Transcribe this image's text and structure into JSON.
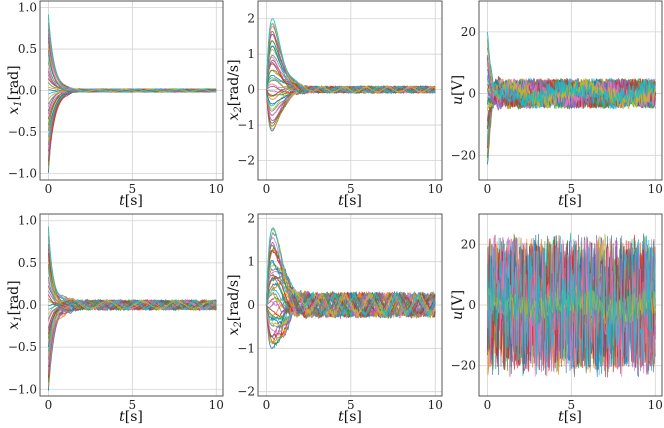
{
  "chart_data": [
    {
      "type": "line",
      "panel": "top-left",
      "xlabel": {
        "var": "t",
        "unit": "[s]"
      },
      "ylabel": {
        "var": "x",
        "sub": "1",
        "unit": "[rad]"
      },
      "xlim": [
        -0.5,
        10.4
      ],
      "ylim": [
        -1.08,
        1.08
      ],
      "xticks": [
        0,
        5,
        10
      ],
      "yticks": [
        -1.0,
        -0.5,
        0.0,
        0.5,
        1.0
      ],
      "ytick_labels": [
        "−1.0",
        "−0.5",
        "0.0",
        "0.5",
        "1.0"
      ],
      "grid": true,
      "series_count": 40,
      "initial_range": [
        -1.0,
        0.93
      ],
      "settling_time": 2.0,
      "steady_amplitude": 0.02,
      "peak_overshoot": 0.0
    },
    {
      "type": "line",
      "panel": "top-middle",
      "xlabel": {
        "var": "t",
        "unit": "[s]"
      },
      "ylabel": {
        "var": "x",
        "sub": "2",
        "unit": "[rad/s]"
      },
      "xlim": [
        -0.5,
        10.4
      ],
      "ylim": [
        -2.55,
        2.5
      ],
      "xticks": [
        0,
        5,
        10
      ],
      "yticks": [
        -2,
        -1,
        0,
        1,
        2
      ],
      "ytick_labels": [
        "−2",
        "−1",
        "0",
        "1",
        "2"
      ],
      "grid": true,
      "series_count": 40,
      "peak_range": [
        -1.2,
        2.0
      ],
      "peak_time": 0.35,
      "steady_amplitude": 0.1
    },
    {
      "type": "line",
      "panel": "top-right",
      "xlabel": {
        "var": "t",
        "unit": "[s]"
      },
      "ylabel": {
        "var": "u",
        "unit": "[V]"
      },
      "xlim": [
        -0.5,
        10.4
      ],
      "ylim": [
        -28,
        30
      ],
      "xticks": [
        0,
        5,
        10
      ],
      "yticks": [
        -20,
        0,
        20
      ],
      "ytick_labels": [
        "−20",
        "0",
        "20"
      ],
      "grid": true,
      "series_count": 40,
      "initial_range": [
        -22,
        18
      ],
      "noise_amplitude": 3,
      "oscillation_amplitude": 2
    },
    {
      "type": "line",
      "panel": "bottom-left",
      "xlabel": {
        "var": "t",
        "unit": "[s]"
      },
      "ylabel": {
        "var": "x",
        "sub": "1",
        "unit": "[rad]"
      },
      "xlim": [
        -0.5,
        10.4
      ],
      "ylim": [
        -1.08,
        1.08
      ],
      "xticks": [
        0,
        5,
        10
      ],
      "yticks": [
        -1.0,
        -0.5,
        0.0,
        0.5,
        1.0
      ],
      "ytick_labels": [
        "−1.0",
        "−0.5",
        "0.0",
        "0.5",
        "1.0"
      ],
      "grid": true,
      "series_count": 40,
      "initial_range": [
        -1.0,
        0.93
      ],
      "settling_time": 2.0,
      "steady_amplitude": 0.06,
      "peak_overshoot": 0.12
    },
    {
      "type": "line",
      "panel": "bottom-middle",
      "xlabel": {
        "var": "t",
        "unit": "[s]"
      },
      "ylabel": {
        "var": "x",
        "sub": "2",
        "unit": "[rad/s]"
      },
      "xlim": [
        -0.5,
        10.4
      ],
      "ylim": [
        -2.1,
        2.1
      ],
      "xticks": [
        0,
        5,
        10
      ],
      "yticks": [
        -2,
        -1,
        0,
        1,
        2
      ],
      "ytick_labels": [
        "−2",
        "−1",
        "0",
        "1",
        "2"
      ],
      "grid": true,
      "series_count": 40,
      "peak_range": [
        -1.2,
        2.0
      ],
      "peak_time": 0.35,
      "steady_amplitude": 0.3
    },
    {
      "type": "line",
      "panel": "bottom-right",
      "xlabel": {
        "var": "t",
        "unit": "[s]"
      },
      "ylabel": {
        "var": "u",
        "unit": "[V]"
      },
      "xlim": [
        -0.5,
        10.4
      ],
      "ylim": [
        -30,
        30
      ],
      "xticks": [
        0,
        5,
        10
      ],
      "yticks": [
        -20,
        0,
        20
      ],
      "ytick_labels": [
        "−20",
        "0",
        "20"
      ],
      "grid": true,
      "series_count": 40,
      "noise_amplitude": 22,
      "mean_band_amplitude": 2
    }
  ],
  "colors": [
    "#1f77b4",
    "#ff7f0e",
    "#2ca02c",
    "#d62728",
    "#9467bd",
    "#8c564b",
    "#e377c2",
    "#7f7f7f",
    "#bcbd22",
    "#17becf"
  ]
}
